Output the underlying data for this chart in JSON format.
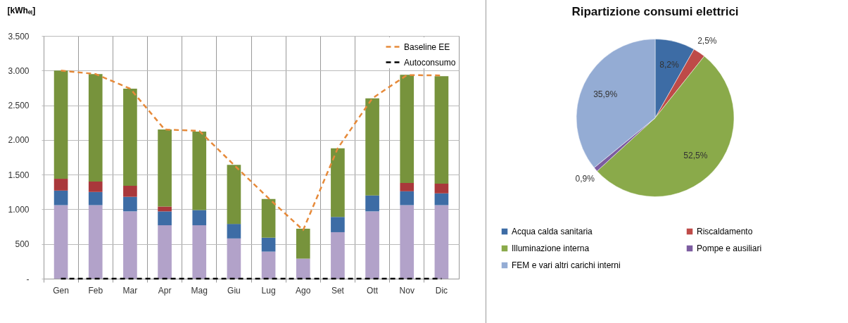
{
  "chart_data": [
    {
      "type": "bar",
      "stacked": true,
      "ylabel": "[kWhₑₗ]",
      "categories": [
        "Gen",
        "Feb",
        "Mar",
        "Apr",
        "Mag",
        "Giu",
        "Lug",
        "Ago",
        "Set",
        "Ott",
        "Nov",
        "Dic"
      ],
      "series": [
        {
          "color": "#b2a2c9",
          "values": [
            1060,
            1060,
            970,
            770,
            770,
            580,
            390,
            290,
            670,
            970,
            1060,
            1060
          ]
        },
        {
          "color": "#3d6ca5",
          "values": [
            210,
            190,
            210,
            200,
            220,
            210,
            200,
            0,
            220,
            230,
            200,
            170
          ]
        },
        {
          "color": "#a9383b",
          "values": [
            170,
            150,
            160,
            70,
            0,
            0,
            0,
            0,
            0,
            0,
            120,
            140
          ]
        },
        {
          "color": "#77933c",
          "values": [
            1560,
            1550,
            1400,
            1110,
            1130,
            850,
            560,
            430,
            990,
            1400,
            1560,
            1550
          ]
        },
        {
          "type": "line",
          "name": "Baseline EE",
          "color": "#e68a3a",
          "line_style": "dashed",
          "values": [
            3000,
            2950,
            2740,
            2150,
            2130,
            1640,
            1160,
            700,
            1880,
            2600,
            2935,
            2930
          ]
        },
        {
          "type": "line",
          "name": "Autoconsumo",
          "color": "#000000",
          "line_style": "dashed",
          "values": [
            0,
            0,
            0,
            0,
            0,
            0,
            0,
            0,
            0,
            0,
            0,
            0
          ]
        }
      ],
      "ylim": [
        0,
        3500
      ],
      "yticks": [
        {
          "value": 0,
          "label": "-"
        },
        {
          "value": 500,
          "label": "500"
        },
        {
          "value": 1000,
          "label": "1.000"
        },
        {
          "value": 1500,
          "label": "1.500"
        },
        {
          "value": 2000,
          "label": "2.000"
        },
        {
          "value": 2500,
          "label": "2.500"
        },
        {
          "value": 3000,
          "label": "3.000"
        },
        {
          "value": 3500,
          "label": "3.500"
        }
      ],
      "grid": true,
      "legend": "top right"
    },
    {
      "type": "pie",
      "title": "Ripartizione consumi elettrici",
      "categories": [
        "Acqua calda sanitaria",
        "Riscaldamento",
        "Illuminazione interna",
        "Pompe e ausiliari",
        "FEM e vari altri carichi interni"
      ],
      "values": [
        8.2,
        2.5,
        52.5,
        0.9,
        35.9
      ],
      "value_labels": [
        "8,2%",
        "2,5%",
        "52,5%",
        "0,9%",
        "35,9%"
      ],
      "colors": [
        "#3d6ca5",
        "#be4b48",
        "#8aaa4a",
        "#7c5ca0",
        "#94acd4"
      ],
      "legend": "bottom"
    }
  ]
}
